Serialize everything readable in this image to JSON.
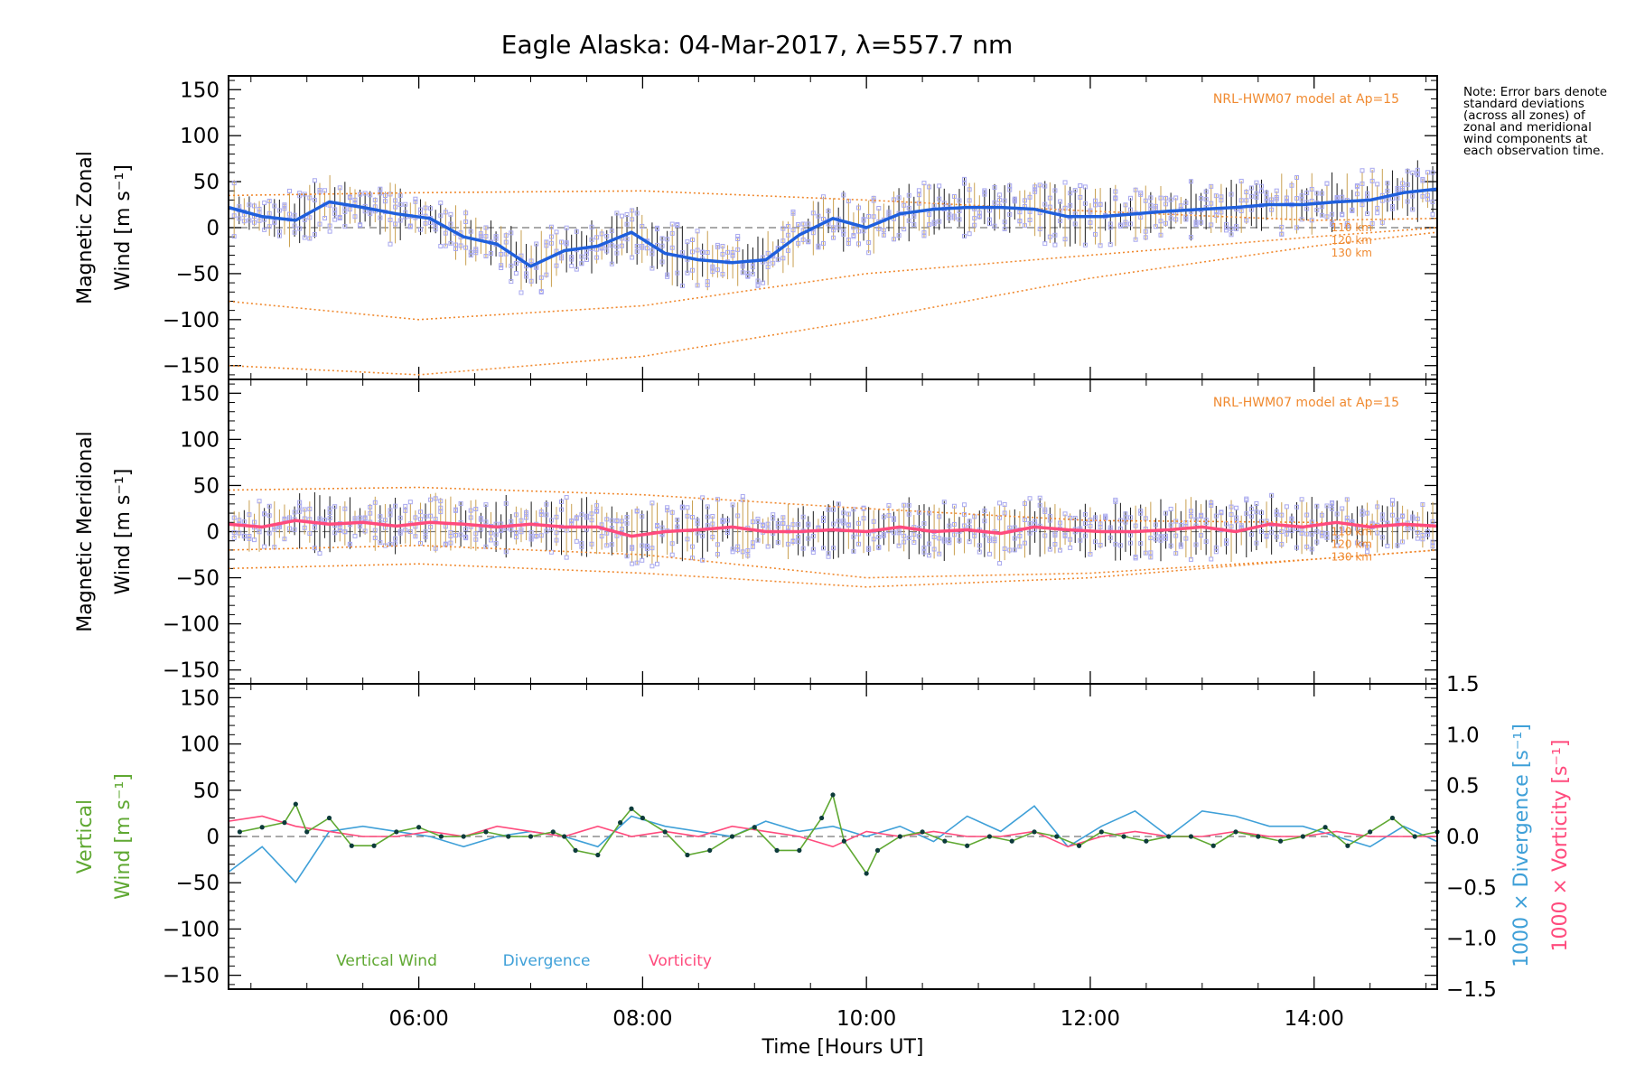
{
  "chart_data": [
    {
      "type": "line",
      "title": "Eagle Alaska: 04-Mar-2017, λ=557.7 nm",
      "ylabel_line1": "Magnetic Zonal",
      "ylabel_line2": "Wind [m s⁻¹]",
      "ylim": [
        -165,
        165
      ],
      "xlim": [
        4.3,
        15.1
      ],
      "yticks": [
        "150",
        "100",
        "50",
        "0",
        "−50",
        "−100",
        "−150"
      ],
      "model_label": "NRL-HWM07 model at Ap=15",
      "model_altitudes": [
        "110 km",
        "120 km",
        "130 km"
      ],
      "series": [
        {
          "name": "zonal-mean",
          "color": "#1f5fdc",
          "x": [
            4.3,
            4.6,
            4.9,
            5.2,
            5.5,
            5.8,
            6.1,
            6.4,
            6.7,
            7.0,
            7.3,
            7.6,
            7.9,
            8.2,
            8.5,
            8.8,
            9.1,
            9.4,
            9.7,
            10.0,
            10.3,
            10.6,
            10.9,
            11.2,
            11.5,
            11.8,
            12.1,
            12.4,
            12.7,
            13.0,
            13.3,
            13.6,
            13.9,
            14.2,
            14.5,
            14.8,
            15.1
          ],
          "values": [
            22,
            12,
            8,
            28,
            22,
            15,
            10,
            -10,
            -18,
            -42,
            -25,
            -20,
            -5,
            -28,
            -35,
            -38,
            -35,
            -8,
            10,
            0,
            15,
            20,
            22,
            22,
            20,
            12,
            12,
            15,
            18,
            20,
            22,
            25,
            25,
            28,
            30,
            38,
            42
          ]
        }
      ],
      "model_curves": [
        {
          "name": "110 km",
          "x": [
            4.3,
            6.0,
            8.0,
            10.0,
            12.0,
            14.0,
            15.1
          ],
          "values": [
            35,
            38,
            40,
            30,
            18,
            8,
            10
          ]
        },
        {
          "name": "120 km",
          "x": [
            4.3,
            6.0,
            8.0,
            10.0,
            12.0,
            14.0,
            15.1
          ],
          "values": [
            -80,
            -100,
            -85,
            -50,
            -30,
            -10,
            0
          ]
        },
        {
          "name": "130 km",
          "x": [
            4.3,
            6.0,
            8.0,
            10.0,
            12.0,
            14.0,
            15.1
          ],
          "values": [
            -150,
            -160,
            -140,
            -100,
            -55,
            -20,
            -5
          ]
        }
      ]
    },
    {
      "type": "line",
      "ylabel_line1": "Magnetic Meridional",
      "ylabel_line2": "Wind [m s⁻¹]",
      "ylim": [
        -165,
        165
      ],
      "xlim": [
        4.3,
        15.1
      ],
      "yticks": [
        "150",
        "100",
        "50",
        "0",
        "−50",
        "−100",
        "−150"
      ],
      "model_label": "NRL-HWM07 model at Ap=15",
      "model_altitudes": [
        "110 km",
        "120 km",
        "130 km"
      ],
      "series": [
        {
          "name": "meridional-mean",
          "color": "#ff4b7d",
          "x": [
            4.3,
            4.6,
            4.9,
            5.2,
            5.5,
            5.8,
            6.1,
            6.4,
            6.7,
            7.0,
            7.3,
            7.6,
            7.9,
            8.2,
            8.5,
            8.8,
            9.1,
            9.4,
            9.7,
            10.0,
            10.3,
            10.6,
            10.9,
            11.2,
            11.5,
            11.8,
            12.1,
            12.4,
            12.7,
            13.0,
            13.3,
            13.6,
            13.9,
            14.2,
            14.5,
            14.8,
            15.1
          ],
          "values": [
            8,
            5,
            12,
            8,
            10,
            6,
            10,
            8,
            5,
            8,
            5,
            5,
            -5,
            0,
            2,
            5,
            0,
            0,
            2,
            0,
            5,
            0,
            2,
            -2,
            5,
            2,
            0,
            0,
            2,
            5,
            0,
            8,
            5,
            10,
            5,
            8,
            6
          ]
        }
      ],
      "model_curves": [
        {
          "name": "110 km",
          "x": [
            4.3,
            6.0,
            8.0,
            10.0,
            12.0,
            14.0,
            15.1
          ],
          "values": [
            45,
            48,
            40,
            25,
            12,
            10,
            5
          ]
        },
        {
          "name": "120 km",
          "x": [
            4.3,
            6.0,
            8.0,
            10.0,
            12.0,
            14.0,
            15.1
          ],
          "values": [
            -20,
            -15,
            -25,
            -50,
            -45,
            -30,
            -20
          ]
        },
        {
          "name": "130 km",
          "x": [
            4.3,
            6.0,
            8.0,
            10.0,
            12.0,
            14.0,
            15.1
          ],
          "values": [
            -40,
            -35,
            -45,
            -60,
            -50,
            -30,
            -20
          ]
        }
      ]
    },
    {
      "type": "line",
      "ylabel_line1": "Vertical",
      "ylabel_line2": "Wind [m s⁻¹]",
      "xlabel": "Time [Hours UT]",
      "ylim": [
        -165,
        165
      ],
      "xlim": [
        4.3,
        15.1
      ],
      "yticks": [
        "150",
        "100",
        "50",
        "0",
        "−50",
        "−100",
        "−150"
      ],
      "xticks": [
        "06:00",
        "08:00",
        "10:00",
        "12:00",
        "14:00"
      ],
      "xtick_values": [
        6,
        8,
        10,
        12,
        14
      ],
      "y2label_divergence": "1000 × Divergence [s⁻¹]",
      "y2label_vorticity": "1000 × Vorticity [s⁻¹]",
      "y2lim": [
        -1.5,
        1.5
      ],
      "y2ticks": [
        "1.5",
        "1.0",
        "0.5",
        "0.0",
        "−0.5",
        "−1.0",
        "−1.5"
      ],
      "legend": [
        "Vertical Wind",
        "Divergence",
        "Vorticity"
      ],
      "series": [
        {
          "name": "Vertical Wind",
          "color": "#5fa832",
          "x": [
            4.4,
            4.6,
            4.8,
            4.9,
            5.0,
            5.2,
            5.4,
            5.6,
            5.8,
            6.0,
            6.2,
            6.4,
            6.6,
            6.8,
            7.0,
            7.2,
            7.3,
            7.4,
            7.6,
            7.8,
            7.9,
            8.0,
            8.2,
            8.4,
            8.6,
            8.8,
            9.0,
            9.2,
            9.4,
            9.6,
            9.7,
            9.8,
            10.0,
            10.1,
            10.3,
            10.5,
            10.7,
            10.9,
            11.1,
            11.3,
            11.5,
            11.7,
            11.9,
            12.1,
            12.3,
            12.5,
            12.7,
            12.9,
            13.1,
            13.3,
            13.5,
            13.7,
            13.9,
            14.1,
            14.3,
            14.5,
            14.7,
            14.9,
            15.1
          ],
          "values": [
            5,
            10,
            15,
            35,
            5,
            20,
            -10,
            -10,
            5,
            10,
            0,
            0,
            5,
            0,
            0,
            5,
            0,
            -15,
            -20,
            15,
            30,
            20,
            5,
            -20,
            -15,
            0,
            10,
            -15,
            -15,
            20,
            45,
            -5,
            -40,
            -15,
            0,
            5,
            -5,
            -10,
            0,
            -5,
            5,
            0,
            -10,
            5,
            0,
            -5,
            0,
            0,
            -10,
            5,
            0,
            -5,
            0,
            10,
            -10,
            5,
            20,
            0,
            5
          ]
        },
        {
          "name": "Divergence",
          "color": "#3fa0d8",
          "x": [
            4.3,
            4.6,
            4.9,
            5.2,
            5.5,
            5.8,
            6.1,
            6.4,
            6.7,
            7.0,
            7.3,
            7.6,
            7.9,
            8.2,
            8.5,
            8.8,
            9.1,
            9.4,
            9.7,
            10.0,
            10.3,
            10.6,
            10.9,
            11.2,
            11.5,
            11.8,
            12.1,
            12.4,
            12.7,
            13.0,
            13.3,
            13.6,
            13.9,
            14.2,
            14.5,
            14.8,
            15.1
          ],
          "values": [
            -0.35,
            -0.1,
            -0.45,
            0.05,
            0.1,
            0.05,
            0.0,
            -0.1,
            0.0,
            0.05,
            0.0,
            -0.1,
            0.2,
            0.1,
            0.05,
            0.0,
            0.15,
            0.05,
            0.1,
            0.0,
            0.1,
            -0.05,
            0.2,
            0.05,
            0.3,
            -0.1,
            0.1,
            0.25,
            0.0,
            0.25,
            0.2,
            0.1,
            0.1,
            0.0,
            -0.1,
            0.1,
            -0.05
          ]
        },
        {
          "name": "Vorticity",
          "color": "#ff4b7d",
          "x": [
            4.3,
            4.6,
            4.9,
            5.2,
            5.5,
            5.8,
            6.1,
            6.4,
            6.7,
            7.0,
            7.3,
            7.6,
            7.9,
            8.2,
            8.5,
            8.8,
            9.1,
            9.4,
            9.7,
            10.0,
            10.3,
            10.6,
            10.9,
            11.2,
            11.5,
            11.8,
            12.1,
            12.4,
            12.7,
            13.0,
            13.3,
            13.6,
            13.9,
            14.2,
            14.5,
            14.8,
            15.1
          ],
          "values": [
            0.15,
            0.2,
            0.1,
            0.05,
            0.0,
            0.0,
            0.05,
            0.0,
            0.1,
            0.05,
            0.0,
            0.1,
            0.0,
            0.05,
            0.0,
            0.1,
            0.05,
            0.0,
            -0.1,
            0.05,
            0.0,
            0.05,
            0.0,
            0.0,
            0.05,
            -0.1,
            0.0,
            0.05,
            0.0,
            0.0,
            0.05,
            0.0,
            0.0,
            0.05,
            0.0,
            0.0,
            0.0
          ]
        }
      ]
    }
  ],
  "note": "Note: Error bars denote standard deviations (across all zones) of zonal and meridional wind components at each observation time."
}
